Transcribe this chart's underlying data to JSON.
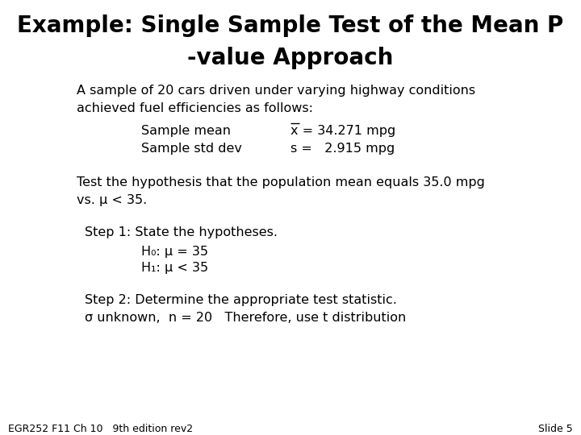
{
  "title_line1": "Example: Single Sample Test of the Mean P",
  "title_line2": "-value Approach",
  "title_fontsize": 20,
  "body_fontsize": 11.5,
  "footer_fontsize": 9,
  "bg_color": "#ffffff",
  "text_color": "#000000",
  "footer_left": "EGR252 F11 Ch 10   9th edition rev2",
  "footer_right": "Slide 5",
  "line1": "A sample of 20 cars driven under varying highway conditions",
  "line2": "achieved fuel efficiencies as follows:",
  "label_mean": "Sample mean",
  "label_std": "Sample std dev",
  "value_mean": "x = 34.271 mpg",
  "value_std": "s =   2.915 mpg",
  "test_line1": "Test the hypothesis that the population mean equals 35.0 mpg",
  "test_line2": "vs. μ < 35.",
  "step1_title": "Step 1: State the hypotheses.",
  "h0": "H₀: μ = 35",
  "h1": "H₁: μ < 35",
  "step2_title": "Step 2: Determine the appropriate test statistic.",
  "step2_body": "σ unknown,  n = 20   Therefore, use t distribution"
}
